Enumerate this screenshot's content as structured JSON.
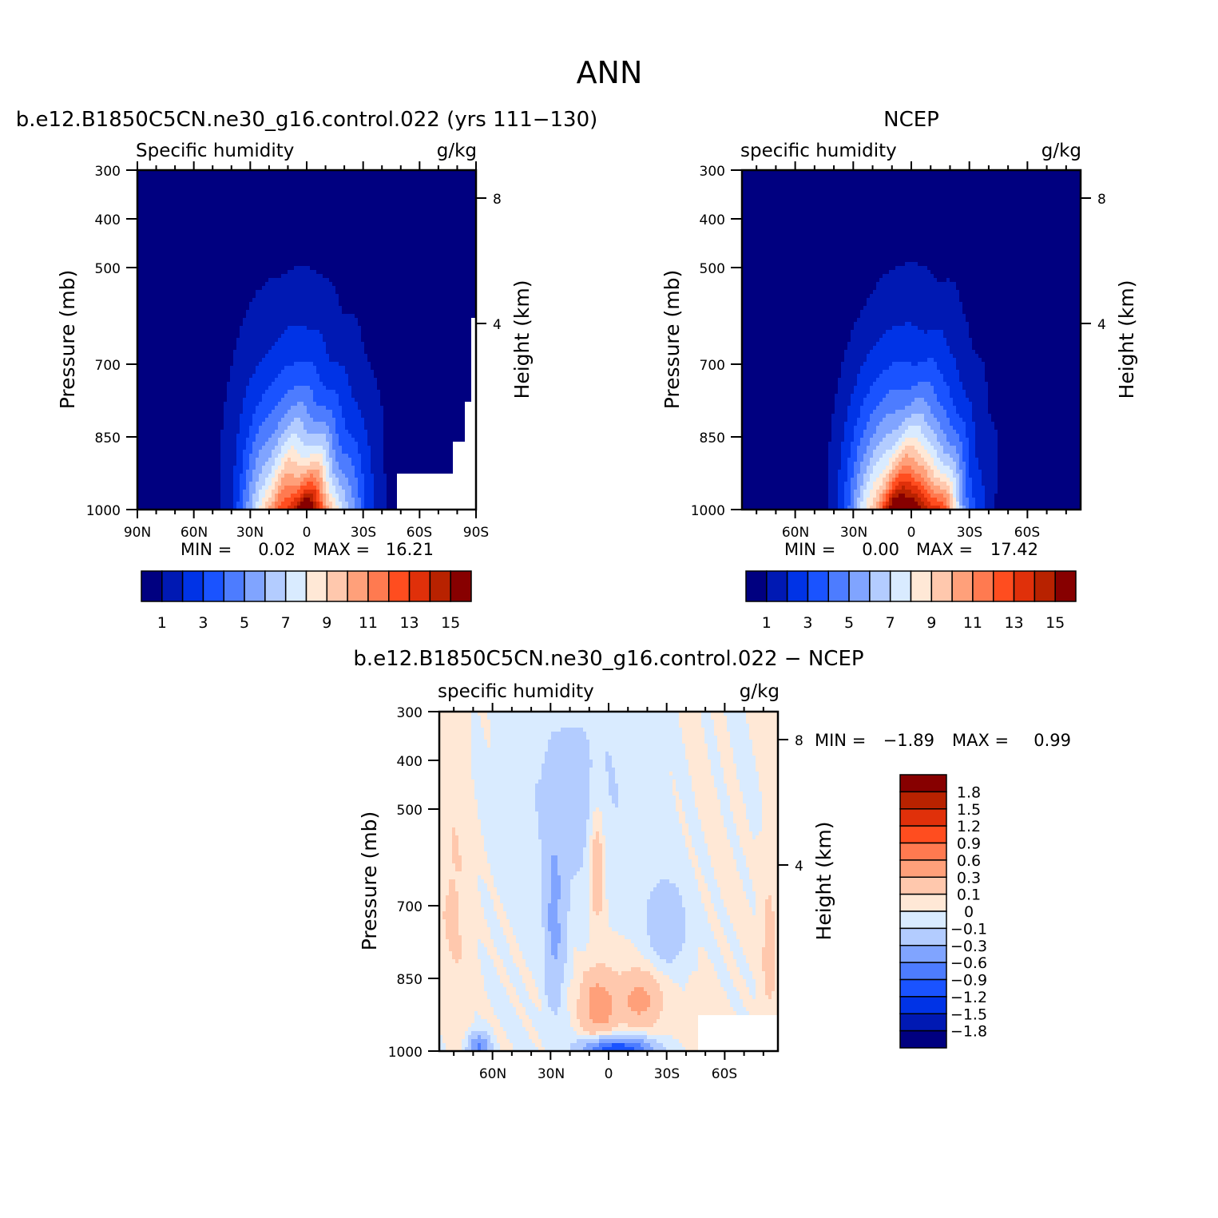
{
  "figure_title": "ANN",
  "chart_data": [
    {
      "type": "contour",
      "title": "b.e12.B1850C5CN.ne30_g16.control.022 (yrs 111−130)",
      "left_string": "Specific humidity",
      "right_string": "g/kg",
      "ylabel": "Pressure (mb)",
      "right_ylabel": "Height (km)",
      "ylim": [
        1000,
        300
      ],
      "y_scale": "log",
      "y_ticks": [
        "300",
        "400",
        "500",
        "700",
        "850",
        "1000"
      ],
      "right_ticks": [
        "8",
        "4"
      ],
      "x_ticks": [
        "90N",
        "60N",
        "30N",
        "0",
        "30S",
        "60S",
        "90S"
      ],
      "min_label": "MIN =",
      "min_value": "0.02",
      "max_label": "MAX =",
      "max_value": "16.21",
      "peak_value": 16.21,
      "peak_latitude": 3,
      "colorbar": {
        "orientation": "horizontal",
        "labels": [
          "1",
          "3",
          "5",
          "7",
          "9",
          "11",
          "13",
          "15"
        ],
        "colors": [
          "#000080",
          "#0019b3",
          "#0033e6",
          "#1a53ff",
          "#4d7cff",
          "#80a4ff",
          "#b3ccff",
          "#d9ebff",
          "#ffe8d6",
          "#ffc8ad",
          "#ffa07a",
          "#ff7a50",
          "#ff4d1f",
          "#e0300a",
          "#b82200",
          "#870000"
        ]
      }
    },
    {
      "type": "contour",
      "title": "NCEP",
      "left_string": "specific humidity",
      "right_string": "g/kg",
      "ylabel": "Pressure (mb)",
      "right_ylabel": "Height (km)",
      "ylim": [
        1000,
        300
      ],
      "y_scale": "log",
      "y_ticks": [
        "300",
        "400",
        "500",
        "700",
        "850",
        "1000"
      ],
      "right_ticks": [
        "8",
        "4"
      ],
      "x_ticks": [
        "60N",
        "30N",
        "0",
        "30S",
        "60S"
      ],
      "min_label": "MIN =",
      "min_value": "0.00",
      "max_label": "MAX =",
      "max_value": "17.42",
      "peak_value": 17.42,
      "peak_latitude": 0,
      "colorbar": {
        "orientation": "horizontal",
        "labels": [
          "1",
          "3",
          "5",
          "7",
          "9",
          "11",
          "13",
          "15"
        ],
        "colors": [
          "#000080",
          "#0019b3",
          "#0033e6",
          "#1a53ff",
          "#4d7cff",
          "#80a4ff",
          "#b3ccff",
          "#d9ebff",
          "#ffe8d6",
          "#ffc8ad",
          "#ffa07a",
          "#ff7a50",
          "#ff4d1f",
          "#e0300a",
          "#b82200",
          "#870000"
        ]
      }
    },
    {
      "type": "contour",
      "title": "b.e12.B1850C5CN.ne30_g16.control.022 − NCEP",
      "left_string": "specific humidity",
      "right_string": "g/kg",
      "ylabel": "Pressure (mb)",
      "right_ylabel": "Height (km)",
      "ylim": [
        1000,
        300
      ],
      "y_scale": "log",
      "y_ticks": [
        "300",
        "400",
        "500",
        "700",
        "850",
        "1000"
      ],
      "right_ticks": [
        "8",
        "4"
      ],
      "x_ticks": [
        "60N",
        "30N",
        "0",
        "30S",
        "60S"
      ],
      "min_label": "MIN =",
      "min_value": "−1.89",
      "max_label": "MAX =",
      "max_value": "0.99",
      "colorbar": {
        "orientation": "vertical",
        "labels": [
          "1.8",
          "1.5",
          "1.2",
          "0.9",
          "0.6",
          "0.3",
          "0.1",
          "0",
          "−0.1",
          "−0.3",
          "−0.6",
          "−0.9",
          "−1.2",
          "−1.5",
          "−1.8"
        ],
        "colors": [
          "#870000",
          "#b82200",
          "#e0300a",
          "#ff4d1f",
          "#ff7a50",
          "#ffa07a",
          "#ffc8ad",
          "#ffe8d6",
          "#d9ebff",
          "#b3ccff",
          "#80a4ff",
          "#4d7cff",
          "#1a53ff",
          "#0033e6",
          "#0019b3",
          "#000080"
        ]
      }
    }
  ]
}
